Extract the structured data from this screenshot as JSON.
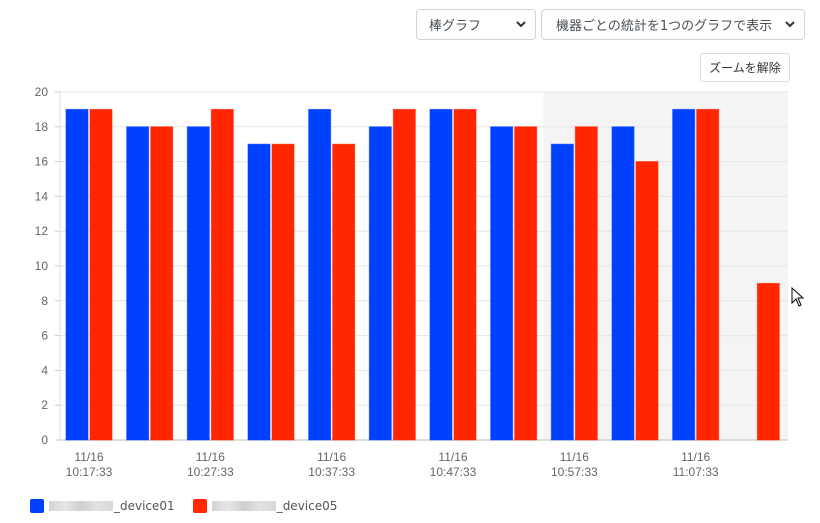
{
  "controls": {
    "chart_type": {
      "selected": "棒グラフ"
    },
    "display_mode": {
      "selected": "機器ごとの統計を1つのグラフで表示"
    },
    "reset_zoom_label": "ズームを解除"
  },
  "legend": [
    {
      "label": "_device01",
      "color": "#0040ff",
      "masked_prefix": true
    },
    {
      "label": "_device05",
      "color": "#ff2600",
      "masked_prefix": true
    }
  ],
  "chart_data": {
    "type": "bar",
    "title": "",
    "xlabel": "",
    "ylabel": "",
    "ylim": [
      0,
      20
    ],
    "yticks": [
      0,
      2,
      4,
      6,
      8,
      10,
      12,
      14,
      16,
      18,
      20
    ],
    "grid": true,
    "legend_position": "bottom-left",
    "categories": [
      "11/16 10:17:33",
      "",
      "11/16 10:27:33",
      "",
      "11/16 10:37:33",
      "",
      "11/16 10:47:33",
      "",
      "11/16 10:57:33",
      "",
      "11/16 11:07:33",
      ""
    ],
    "x_tick_labels": [
      {
        "index": 0,
        "line1": "11/16",
        "line2": "10:17:33"
      },
      {
        "index": 2,
        "line1": "11/16",
        "line2": "10:27:33"
      },
      {
        "index": 4,
        "line1": "11/16",
        "line2": "10:37:33"
      },
      {
        "index": 6,
        "line1": "11/16",
        "line2": "10:47:33"
      },
      {
        "index": 8,
        "line1": "11/16",
        "line2": "10:57:33"
      },
      {
        "index": 10,
        "line1": "11/16",
        "line2": "11:07:33"
      }
    ],
    "series": [
      {
        "name": "_device01",
        "color": "#0040ff",
        "values": [
          19,
          18,
          18,
          17,
          19,
          18,
          19,
          18,
          17,
          18,
          19,
          null
        ]
      },
      {
        "name": "_device05",
        "color": "#ff2600",
        "values": [
          19,
          18,
          19,
          17,
          17,
          19,
          19,
          18,
          18,
          16,
          19,
          9
        ]
      }
    ],
    "highlight_region": {
      "from_index": 8,
      "to_index": 11,
      "color": "#f4f4f4"
    }
  }
}
